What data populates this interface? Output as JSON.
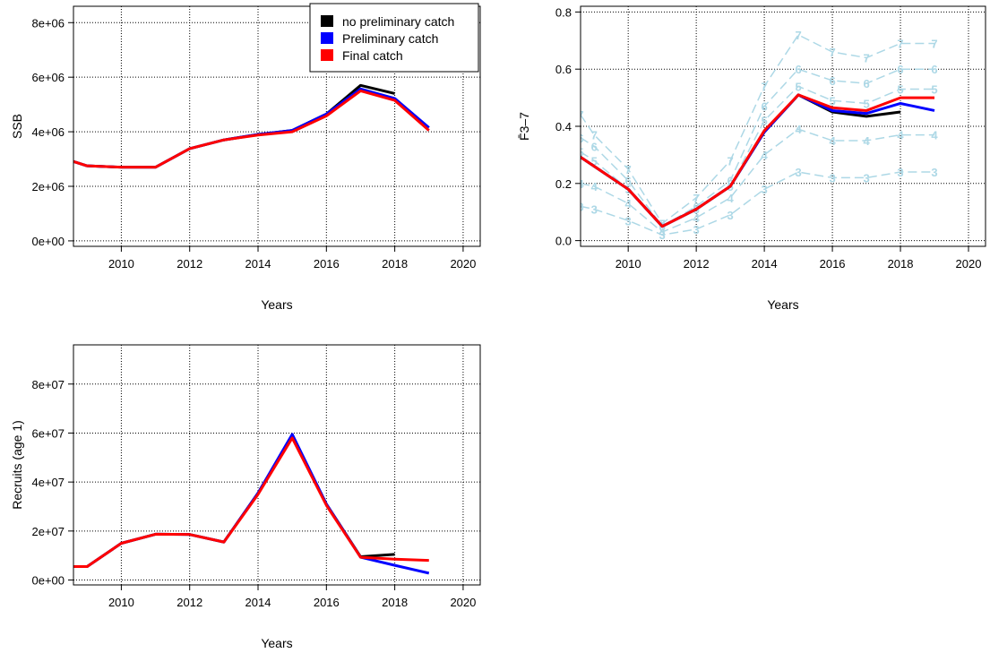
{
  "chart_data": [
    {
      "id": "ssb",
      "type": "line",
      "title": "",
      "xlabel": "Years",
      "ylabel": "SSB",
      "xlim": [
        2008.6,
        2020.5
      ],
      "ylim": [
        -200000,
        8600000
      ],
      "xticks": [
        2010,
        2012,
        2014,
        2016,
        2018,
        2020
      ],
      "xtick_labels": [
        "2010",
        "2012",
        "2014",
        "2016",
        "2018",
        "2020"
      ],
      "yticks": [
        0,
        2000000,
        4000000,
        6000000,
        8000000
      ],
      "ytick_labels": [
        "0e+00",
        "2e+06",
        "4e+06",
        "6e+06",
        "8e+06"
      ],
      "grid": true,
      "legend": {
        "position": "top-right",
        "entries": [
          {
            "label": "no preliminary catch",
            "color": "#000000"
          },
          {
            "label": "Preliminary catch",
            "color": "#0000ff"
          },
          {
            "label": "Final catch",
            "color": "#ff0000"
          }
        ]
      },
      "series": [
        {
          "name": "no preliminary catch",
          "color": "#000000",
          "x": [
            2008,
            2009,
            2010,
            2011,
            2012,
            2013,
            2014,
            2015,
            2016,
            2017,
            2018
          ],
          "y": [
            3150000,
            2750000,
            2700000,
            2700000,
            3380000,
            3700000,
            3900000,
            4050000,
            4650000,
            5700000,
            5400000
          ]
        },
        {
          "name": "Preliminary catch",
          "color": "#0000ff",
          "x": [
            2008,
            2009,
            2010,
            2011,
            2012,
            2013,
            2014,
            2015,
            2016,
            2017,
            2018,
            2019
          ],
          "y": [
            3150000,
            2750000,
            2700000,
            2700000,
            3380000,
            3700000,
            3900000,
            4050000,
            4650000,
            5570000,
            5220000,
            4150000
          ]
        },
        {
          "name": "Final catch",
          "color": "#ff0000",
          "x": [
            2008,
            2009,
            2010,
            2011,
            2012,
            2013,
            2014,
            2015,
            2016,
            2017,
            2018,
            2019
          ],
          "y": [
            3150000,
            2750000,
            2700000,
            2700000,
            3380000,
            3700000,
            3880000,
            4000000,
            4580000,
            5500000,
            5150000,
            4050000
          ]
        }
      ]
    },
    {
      "id": "fbar",
      "type": "line",
      "title": "",
      "xlabel": "Years",
      "ylabel": "F̄3–7",
      "xlim": [
        2008.6,
        2020.5
      ],
      "ylim": [
        -0.02,
        0.82
      ],
      "xticks": [
        2010,
        2012,
        2014,
        2016,
        2018,
        2020
      ],
      "xtick_labels": [
        "2010",
        "2012",
        "2014",
        "2016",
        "2018",
        "2020"
      ],
      "yticks": [
        0,
        0.2,
        0.4,
        0.6,
        0.8
      ],
      "ytick_labels": [
        "0.0",
        "0.2",
        "0.4",
        "0.6",
        "0.8"
      ],
      "grid": true,
      "series": [
        {
          "name": "no preliminary catch",
          "color": "#000000",
          "x": [
            2008,
            2009,
            2010,
            2011,
            2012,
            2013,
            2014,
            2015,
            2016,
            2017,
            2018
          ],
          "y": [
            0.34,
            0.26,
            0.18,
            0.05,
            0.11,
            0.19,
            0.38,
            0.51,
            0.45,
            0.435,
            0.45
          ]
        },
        {
          "name": "Preliminary catch",
          "color": "#0000ff",
          "x": [
            2008,
            2009,
            2010,
            2011,
            2012,
            2013,
            2014,
            2015,
            2016,
            2017,
            2018,
            2019
          ],
          "y": [
            0.34,
            0.26,
            0.18,
            0.05,
            0.11,
            0.19,
            0.38,
            0.51,
            0.455,
            0.445,
            0.48,
            0.455
          ]
        },
        {
          "name": "Final catch",
          "color": "#ff0000",
          "x": [
            2008,
            2009,
            2010,
            2011,
            2012,
            2013,
            2014,
            2015,
            2016,
            2017,
            2018,
            2019
          ],
          "y": [
            0.34,
            0.26,
            0.18,
            0.05,
            0.11,
            0.19,
            0.385,
            0.51,
            0.465,
            0.455,
            0.5,
            0.5
          ]
        }
      ],
      "retro_series": [
        {
          "label": "3",
          "x": [
            2008.6,
            2009,
            2010,
            2011,
            2012,
            2013,
            2014,
            2015,
            2016,
            2017,
            2018,
            2019
          ],
          "y": [
            0.12,
            0.11,
            0.07,
            0.02,
            0.04,
            0.09,
            0.18,
            0.24,
            0.22,
            0.22,
            0.24,
            0.24
          ]
        },
        {
          "label": "4",
          "x": [
            2008.6,
            2009,
            2010,
            2011,
            2012,
            2013,
            2014,
            2015,
            2016,
            2017,
            2018,
            2019
          ],
          "y": [
            0.2,
            0.19,
            0.13,
            0.03,
            0.08,
            0.15,
            0.3,
            0.39,
            0.35,
            0.35,
            0.37,
            0.37
          ]
        },
        {
          "label": "5",
          "x": [
            2008.6,
            2009,
            2010,
            2011,
            2012,
            2013,
            2014,
            2015,
            2016,
            2017,
            2018,
            2019
          ],
          "y": [
            0.31,
            0.28,
            0.18,
            0.05,
            0.11,
            0.19,
            0.42,
            0.54,
            0.49,
            0.48,
            0.53,
            0.53
          ]
        },
        {
          "label": "6",
          "x": [
            2008.6,
            2009,
            2010,
            2011,
            2012,
            2013,
            2014,
            2015,
            2016,
            2017,
            2018,
            2019
          ],
          "y": [
            0.36,
            0.33,
            0.21,
            0.05,
            0.12,
            0.21,
            0.47,
            0.6,
            0.56,
            0.55,
            0.6,
            0.6
          ]
        },
        {
          "label": "7",
          "x": [
            2008.6,
            2009,
            2010,
            2011,
            2012,
            2013,
            2014,
            2015,
            2016,
            2017,
            2018,
            2019
          ],
          "y": [
            0.44,
            0.37,
            0.25,
            0.06,
            0.15,
            0.28,
            0.54,
            0.72,
            0.66,
            0.64,
            0.69,
            0.69
          ]
        }
      ]
    },
    {
      "id": "rec",
      "type": "line",
      "title": "",
      "xlabel": "Years",
      "ylabel": "Recruits (age 1)",
      "xlim": [
        2008.6,
        2020.5
      ],
      "ylim": [
        -2000000,
        96000000
      ],
      "xticks": [
        2010,
        2012,
        2014,
        2016,
        2018,
        2020
      ],
      "xtick_labels": [
        "2010",
        "2012",
        "2014",
        "2016",
        "2018",
        "2020"
      ],
      "yticks": [
        0,
        20000000,
        40000000,
        60000000,
        80000000
      ],
      "ytick_labels": [
        "0e+00",
        "2e+07",
        "4e+07",
        "6e+07",
        "8e+07"
      ],
      "grid": true,
      "series": [
        {
          "name": "no preliminary catch",
          "color": "#000000",
          "x": [
            2008,
            2009,
            2010,
            2011,
            2012,
            2013,
            2014,
            2015,
            2016,
            2017,
            2018
          ],
          "y": [
            5500000,
            5500000,
            15000000,
            18700000,
            18600000,
            15500000,
            35500000,
            59000000,
            31000000,
            9500000,
            10500000
          ]
        },
        {
          "name": "Preliminary catch",
          "color": "#0000ff",
          "x": [
            2008,
            2009,
            2010,
            2011,
            2012,
            2013,
            2014,
            2015,
            2016,
            2017,
            2018,
            2019
          ],
          "y": [
            5500000,
            5500000,
            15000000,
            18700000,
            18600000,
            15500000,
            35500000,
            59500000,
            31000000,
            9300000,
            6000000,
            2800000
          ]
        },
        {
          "name": "Final catch",
          "color": "#ff0000",
          "x": [
            2008,
            2009,
            2010,
            2011,
            2012,
            2013,
            2014,
            2015,
            2016,
            2017,
            2018,
            2019
          ],
          "y": [
            5500000,
            5500000,
            15000000,
            18700000,
            18600000,
            15500000,
            35000000,
            58000000,
            30500000,
            9300000,
            8500000,
            8000000
          ]
        }
      ]
    }
  ]
}
